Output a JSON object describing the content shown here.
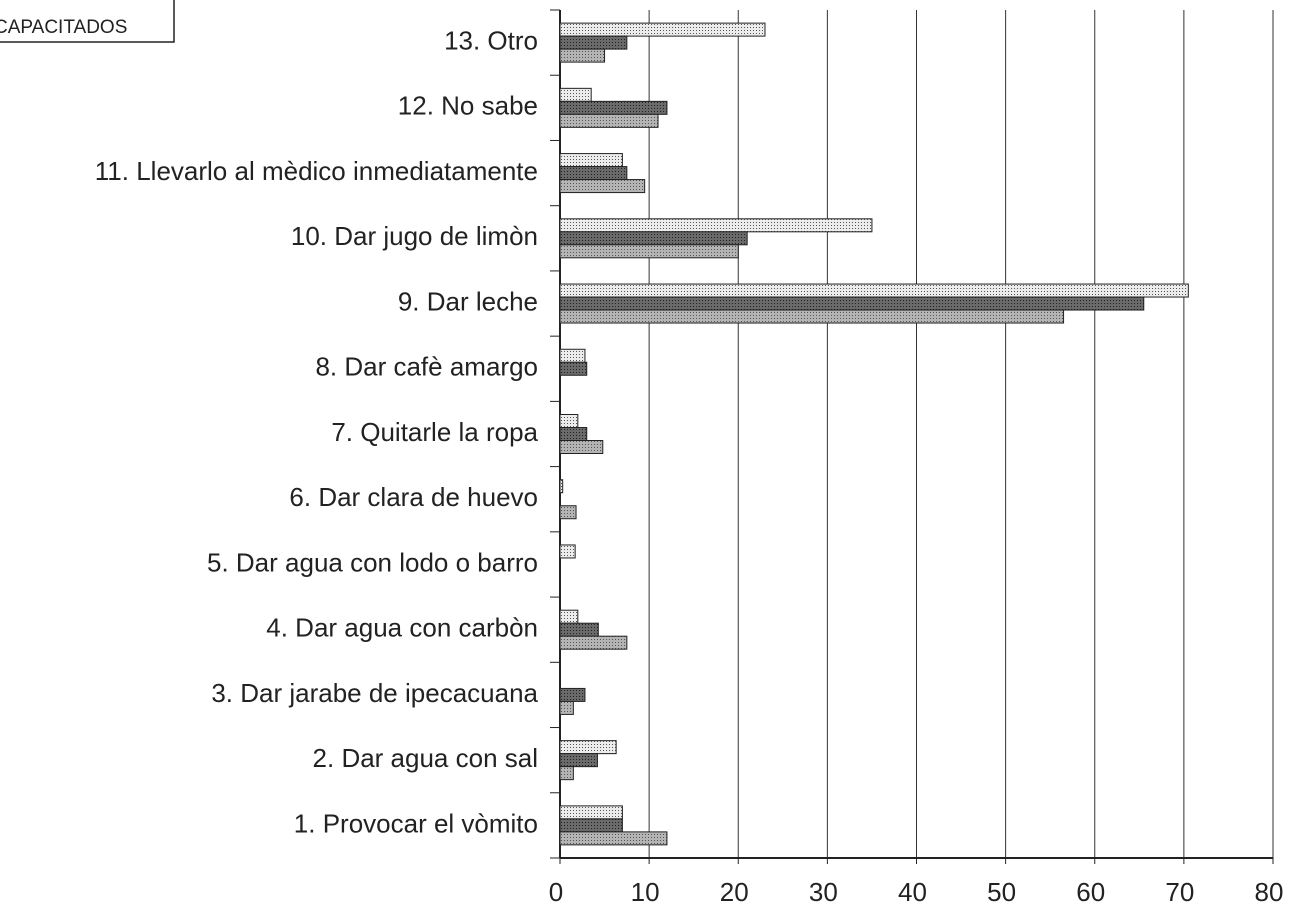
{
  "chart_data": {
    "type": "hbar",
    "legend_label": "CAPACITADOS",
    "categories": [
      "1. Provocar el vòmito",
      "2. Dar agua con sal",
      "3. Dar jarabe de ipecacuana",
      "4. Dar agua con carbòn",
      "5. Dar agua con lodo o barro",
      "6. Dar clara de huevo",
      "7. Quitarle la ropa",
      "8. Dar cafè amargo",
      "9. Dar leche",
      "10. Dar jugo de limòn",
      "11. Llevarlo al mèdico inmediatamente",
      "12. No sabe",
      "13. Otro"
    ],
    "series": [
      {
        "color": "#ececec",
        "values": [
          7,
          6.3,
          0,
          2,
          1.7,
          0.3,
          2,
          2.8,
          70.5,
          35,
          7,
          3.5,
          23
        ]
      },
      {
        "color": "#6a6a6a",
        "values": [
          7,
          4.2,
          2.8,
          4.3,
          0,
          0,
          3,
          3,
          65.5,
          21,
          7.5,
          12,
          7.5
        ]
      },
      {
        "color": "#b4b4b4",
        "values": [
          12,
          1.5,
          1.5,
          7.5,
          0,
          1.8,
          4.8,
          0,
          56.5,
          20,
          9.5,
          11,
          5
        ]
      }
    ],
    "xlim": [
      0,
      80
    ],
    "xticks": [
      0,
      10,
      20,
      30,
      40,
      50,
      60,
      70,
      80
    ],
    "grid": true
  }
}
